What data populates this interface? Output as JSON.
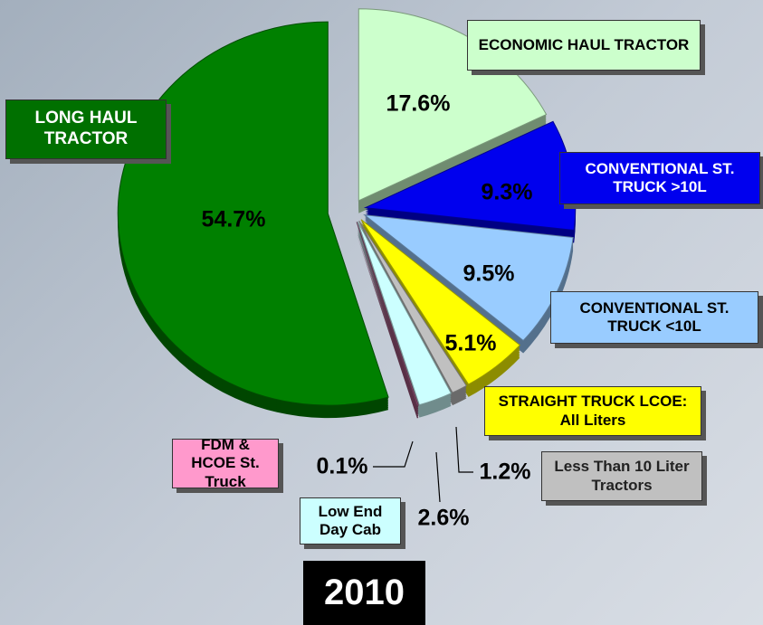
{
  "chart_data": {
    "type": "pie",
    "title": "2010",
    "categories": [
      "ECONOMIC HAUL TRACTOR",
      "CONVENTIONAL ST. TRUCK >10L",
      "CONVENTIONAL ST. TRUCK <10L",
      "STRAIGHT TRUCK LCOE: All Liters",
      "Less Than 10 Liter Tractors",
      "Low End Day Cab",
      "FDM & HCOE St. Truck",
      "LONG HAUL TRACTOR"
    ],
    "values": [
      17.6,
      9.3,
      9.5,
      5.1,
      1.2,
      2.6,
      0.1,
      54.7
    ],
    "value_labels": [
      "17.6%",
      "9.3%",
      "9.5%",
      "5.1%",
      "1.2%",
      "2.6%",
      "0.1%",
      "54.7%"
    ],
    "colors": [
      "#ccffcc",
      "#0000ee",
      "#99ccff",
      "#ffff00",
      "#c0c0c0",
      "#ccffff",
      "#a05880",
      "#008000"
    ],
    "label_colors": [
      "#ccffcc",
      "#0000ee",
      "#99ccff",
      "#ffff00",
      "#c0c0c0",
      "#ccffff",
      "#ff99cc",
      "#007000"
    ]
  }
}
